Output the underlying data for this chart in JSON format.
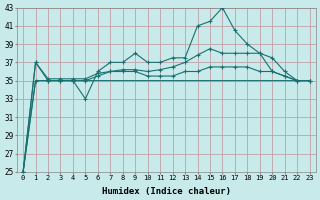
{
  "title": "",
  "xlabel": "Humidex (Indice chaleur)",
  "ylabel": "",
  "xlim": [
    -0.5,
    23.5
  ],
  "ylim": [
    25,
    43
  ],
  "yticks": [
    25,
    27,
    29,
    31,
    33,
    35,
    37,
    39,
    41,
    43
  ],
  "xticks": [
    0,
    1,
    2,
    3,
    4,
    5,
    6,
    7,
    8,
    9,
    10,
    11,
    12,
    13,
    14,
    15,
    16,
    17,
    18,
    19,
    20,
    21,
    22,
    23
  ],
  "bg_color": "#c8eaea",
  "grid_color": "#c0a0a8",
  "line_color": "#1a7070",
  "lines": [
    {
      "y": [
        25,
        37,
        35,
        35,
        35,
        33,
        36,
        37,
        37,
        38,
        37,
        37,
        37.5,
        37.5,
        41,
        41.5,
        43,
        40.5,
        39,
        38,
        37.5,
        36,
        35,
        35
      ],
      "marker": true
    },
    {
      "y": [
        25,
        37,
        35.2,
        35.2,
        35.2,
        35.2,
        35.8,
        36,
        36.2,
        36.2,
        36,
        36.2,
        36.5,
        37,
        37.8,
        38.5,
        38,
        38,
        38,
        38,
        36,
        35.5,
        35,
        35
      ],
      "marker": true
    },
    {
      "y": [
        25,
        35,
        35,
        35,
        35,
        35,
        35,
        35,
        35,
        35,
        35,
        35,
        35,
        35,
        35,
        35,
        35,
        35,
        35,
        35,
        35,
        35,
        35,
        35
      ],
      "marker": false
    },
    {
      "y": [
        25,
        35,
        35,
        35,
        35,
        35,
        35.5,
        36,
        36,
        36,
        35.5,
        35.5,
        35.5,
        36,
        36,
        36.5,
        36.5,
        36.5,
        36.5,
        36,
        36,
        35.5,
        35,
        35
      ],
      "marker": true
    }
  ]
}
